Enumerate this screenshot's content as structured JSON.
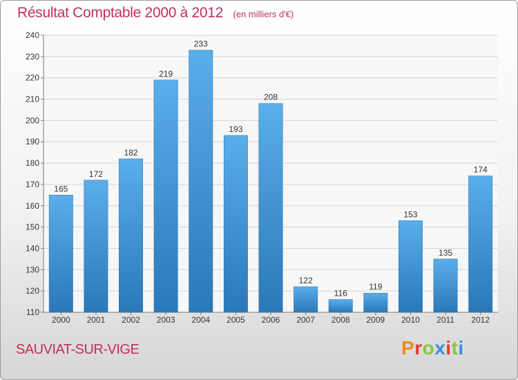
{
  "title": "Résultat Comptable 2000 à 2012",
  "subtitle": "(en milliers d'€)",
  "commune": "SAUVIAT-SUR-VIGE",
  "logo": [
    "P",
    "r",
    "o",
    "x",
    "i",
    "t",
    "i"
  ],
  "colors": {
    "title": "#c0305a",
    "bar_top": "#5aaeea",
    "bar_bottom": "#2a78b9"
  },
  "chart_data": {
    "type": "bar",
    "title": "Résultat Comptable 2000 à 2012",
    "subtitle": "(en milliers d'€)",
    "categories": [
      "2000",
      "2001",
      "2002",
      "2003",
      "2004",
      "2005",
      "2006",
      "2007",
      "2008",
      "2009",
      "2010",
      "2011",
      "2012"
    ],
    "values": [
      165,
      172,
      182,
      219,
      233,
      193,
      208,
      122,
      116,
      119,
      153,
      135,
      174
    ],
    "ylim": [
      110,
      240
    ],
    "yticks": [
      110,
      120,
      130,
      140,
      150,
      160,
      170,
      180,
      190,
      200,
      210,
      220,
      230,
      240
    ],
    "grid": true
  }
}
